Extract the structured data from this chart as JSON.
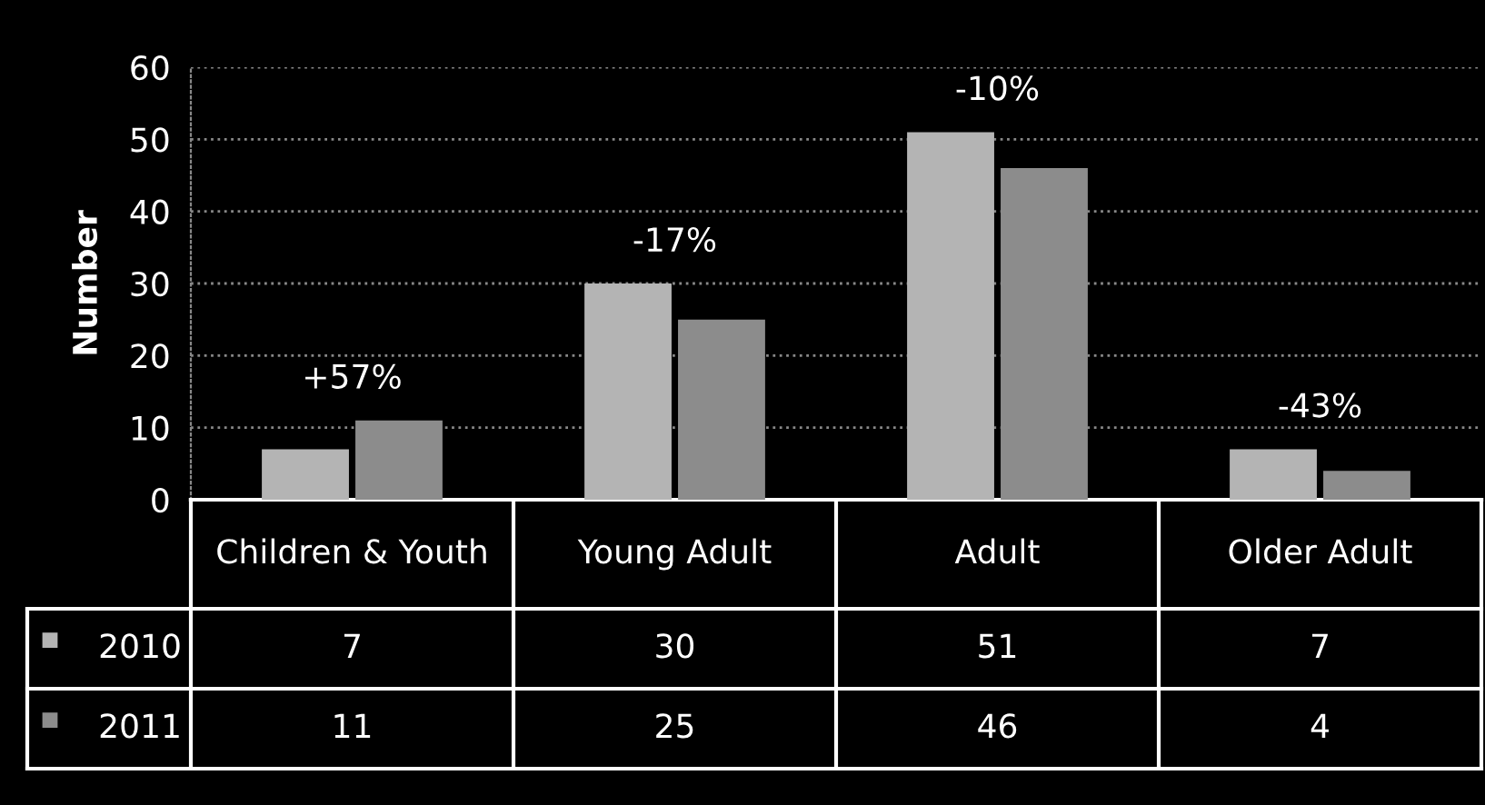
{
  "chart_data": {
    "type": "bar",
    "ylabel": "Number",
    "categories": [
      "Children & Youth",
      "Young Adult",
      "Adult",
      "Older Adult"
    ],
    "series": [
      {
        "name": "2010",
        "color": "#b4b4b4",
        "values": [
          7,
          30,
          51,
          7
        ]
      },
      {
        "name": "2011",
        "color": "#8c8c8c",
        "values": [
          11,
          25,
          46,
          4
        ]
      }
    ],
    "ylim": [
      0,
      60
    ],
    "yticks": [
      0,
      10,
      20,
      30,
      40,
      50,
      60
    ],
    "grid": "y",
    "legend": "bottom",
    "data_labels": true,
    "annotations": [
      {
        "text": "+57%",
        "x": "Children & Youth",
        "y": 11
      },
      {
        "text": "-17%",
        "x": "Young Adult",
        "y": 30
      },
      {
        "text": "-10%",
        "x": "Adult",
        "y": 51
      },
      {
        "text": "-43%",
        "x": "Older Adult",
        "y": 7
      }
    ]
  }
}
